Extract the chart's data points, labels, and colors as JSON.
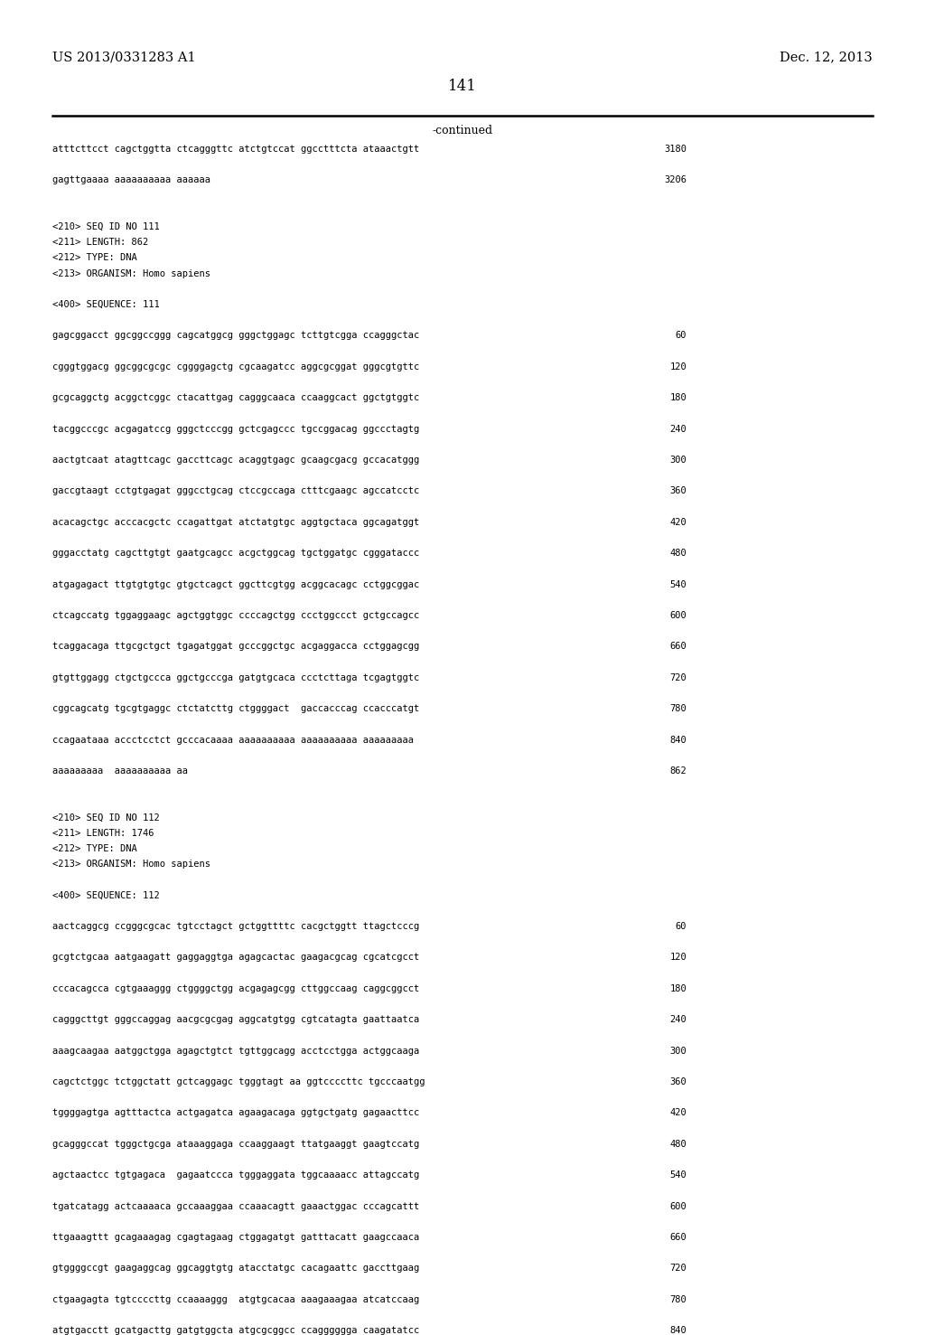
{
  "page_number": "141",
  "patent_number": "US 2013/0331283 A1",
  "patent_date": "Dec. 12, 2013",
  "continued_label": "-continued",
  "background_color": "#ffffff",
  "text_color": "#000000",
  "lines": [
    {
      "text": "atttcttcct cagctggtta ctcagggttc atctgtccat ggcctttcta ataaactgtt",
      "num": "3180"
    },
    {
      "text": "",
      "num": ""
    },
    {
      "text": "gagttgaaaa aaaaaaaaaa aaaaaa",
      "num": "3206"
    },
    {
      "text": "",
      "num": ""
    },
    {
      "text": "",
      "num": ""
    },
    {
      "text": "<210> SEQ ID NO 111",
      "num": ""
    },
    {
      "text": "<211> LENGTH: 862",
      "num": ""
    },
    {
      "text": "<212> TYPE: DNA",
      "num": ""
    },
    {
      "text": "<213> ORGANISM: Homo sapiens",
      "num": ""
    },
    {
      "text": "",
      "num": ""
    },
    {
      "text": "<400> SEQUENCE: 111",
      "num": ""
    },
    {
      "text": "",
      "num": ""
    },
    {
      "text": "gagcggacct ggcggccggg cagcatggcg gggctggagc tcttgtcgga ccagggctac",
      "num": "60"
    },
    {
      "text": "",
      "num": ""
    },
    {
      "text": "cgggtggacg ggcggcgcgc cggggagctg cgcaagatcc aggcgcggat gggcgtgttc",
      "num": "120"
    },
    {
      "text": "",
      "num": ""
    },
    {
      "text": "gcgcaggctg acggctcggc ctacattgag cagggcaaca ccaaggcact ggctgtggtc",
      "num": "180"
    },
    {
      "text": "",
      "num": ""
    },
    {
      "text": "tacggcccgc acgagatccg gggctcccgg gctcgagccc tgccggacag ggccctagtg",
      "num": "240"
    },
    {
      "text": "",
      "num": ""
    },
    {
      "text": "aactgtcaat atagttcagc gaccttcagc acaggtgagc gcaagcgacg gccacatggg",
      "num": "300"
    },
    {
      "text": "",
      "num": ""
    },
    {
      "text": "gaccgtaagt cctgtgagat gggcctgcag ctccgccaga ctttcgaagc agccatcctc",
      "num": "360"
    },
    {
      "text": "",
      "num": ""
    },
    {
      "text": "acacagctgc acccacgctc ccagattgat atctatgtgc aggtgctaca ggcagatggt",
      "num": "420"
    },
    {
      "text": "",
      "num": ""
    },
    {
      "text": "gggacctatg cagcttgtgt gaatgcagcc acgctggcag tgctggatgc cgggataccc",
      "num": "480"
    },
    {
      "text": "",
      "num": ""
    },
    {
      "text": "atgagagact ttgtgtgtgc gtgctcagct ggcttcgtgg acggcacagc cctggcggac",
      "num": "540"
    },
    {
      "text": "",
      "num": ""
    },
    {
      "text": "ctcagccatg tggaggaagc agctggtggc ccccagctgg ccctggccct gctgccagcc",
      "num": "600"
    },
    {
      "text": "",
      "num": ""
    },
    {
      "text": "tcaggacaga ttgcgctgct tgagatggat gcccggctgc acgaggacca cctggagcgg",
      "num": "660"
    },
    {
      "text": "",
      "num": ""
    },
    {
      "text": "gtgttggagg ctgctgccca ggctgcccga gatgtgcaca ccctcttaga tcgagtggtc",
      "num": "720"
    },
    {
      "text": "",
      "num": ""
    },
    {
      "text": "cggcagcatg tgcgtgaggc ctctatcttg ctggggact  gaccacccag ccacccatgt",
      "num": "780"
    },
    {
      "text": "",
      "num": ""
    },
    {
      "text": "ccagaataaa accctcctct gcccacaaaa aaaaaaaaaa aaaaaaaaaa aaaaaaaaa",
      "num": "840"
    },
    {
      "text": "",
      "num": ""
    },
    {
      "text": "aaaaaaaaa  aaaaaaaaaa aa",
      "num": "862"
    },
    {
      "text": "",
      "num": ""
    },
    {
      "text": "",
      "num": ""
    },
    {
      "text": "<210> SEQ ID NO 112",
      "num": ""
    },
    {
      "text": "<211> LENGTH: 1746",
      "num": ""
    },
    {
      "text": "<212> TYPE: DNA",
      "num": ""
    },
    {
      "text": "<213> ORGANISM: Homo sapiens",
      "num": ""
    },
    {
      "text": "",
      "num": ""
    },
    {
      "text": "<400> SEQUENCE: 112",
      "num": ""
    },
    {
      "text": "",
      "num": ""
    },
    {
      "text": "aactcaggcg ccgggcgcac tgtcctagct gctggttttc cacgctggtt ttagctcccg",
      "num": "60"
    },
    {
      "text": "",
      "num": ""
    },
    {
      "text": "gcgtctgcaa aatgaagatt gaggaggtga agagcactac gaagacgcag cgcatcgcct",
      "num": "120"
    },
    {
      "text": "",
      "num": ""
    },
    {
      "text": "cccacagcca cgtgaaaggg ctggggctgg acgagagcgg cttggccaag caggcggcct",
      "num": "180"
    },
    {
      "text": "",
      "num": ""
    },
    {
      "text": "cagggcttgt gggccaggag aacgcgcgag aggcatgtgg cgtcatagta gaattaatca",
      "num": "240"
    },
    {
      "text": "",
      "num": ""
    },
    {
      "text": "aaagcaagaa aatggctgga agagctgtct tgttggcagg acctcctgga actggcaaga",
      "num": "300"
    },
    {
      "text": "",
      "num": ""
    },
    {
      "text": "cagctctggc tctggctatt gctcaggagc tgggtagt aa ggtccccttc tgcccaatgg",
      "num": "360"
    },
    {
      "text": "",
      "num": ""
    },
    {
      "text": "tggggagtga agtttactca actgagatca agaagacaga ggtgctgatg gagaacttcc",
      "num": "420"
    },
    {
      "text": "",
      "num": ""
    },
    {
      "text": "gcagggccat tgggctgcga ataaaggaga ccaaggaagt ttatgaaggt gaagtccatg",
      "num": "480"
    },
    {
      "text": "",
      "num": ""
    },
    {
      "text": "agctaactcc tgtgagaca  gagaatccca tgggaggata tggcaaaacc attagccatg",
      "num": "540"
    },
    {
      "text": "",
      "num": ""
    },
    {
      "text": "tgatcatagg actcaaaaca gccaaaggaa ccaaacagtt gaaactggac cccagcattt",
      "num": "600"
    },
    {
      "text": "",
      "num": ""
    },
    {
      "text": "ttgaaagttt gcagaaagag cgagtagaag ctggagatgt gatttacatt gaagccaaca",
      "num": "660"
    },
    {
      "text": "",
      "num": ""
    },
    {
      "text": "gtggggccgt gaagaggcag ggcaggtgtg atacctatgc cacagaattc gaccttgaag",
      "num": "720"
    },
    {
      "text": "",
      "num": ""
    },
    {
      "text": "ctgaagagta tgtccccttg ccaaaaggg  atgtgcacaa aaagaaagaa atcatccaag",
      "num": "780"
    },
    {
      "text": "",
      "num": ""
    },
    {
      "text": "atgtgacctt gcatgacttg gatgtggcta atgcgcggcc ccagggggga caagatatcc",
      "num": "840"
    }
  ]
}
